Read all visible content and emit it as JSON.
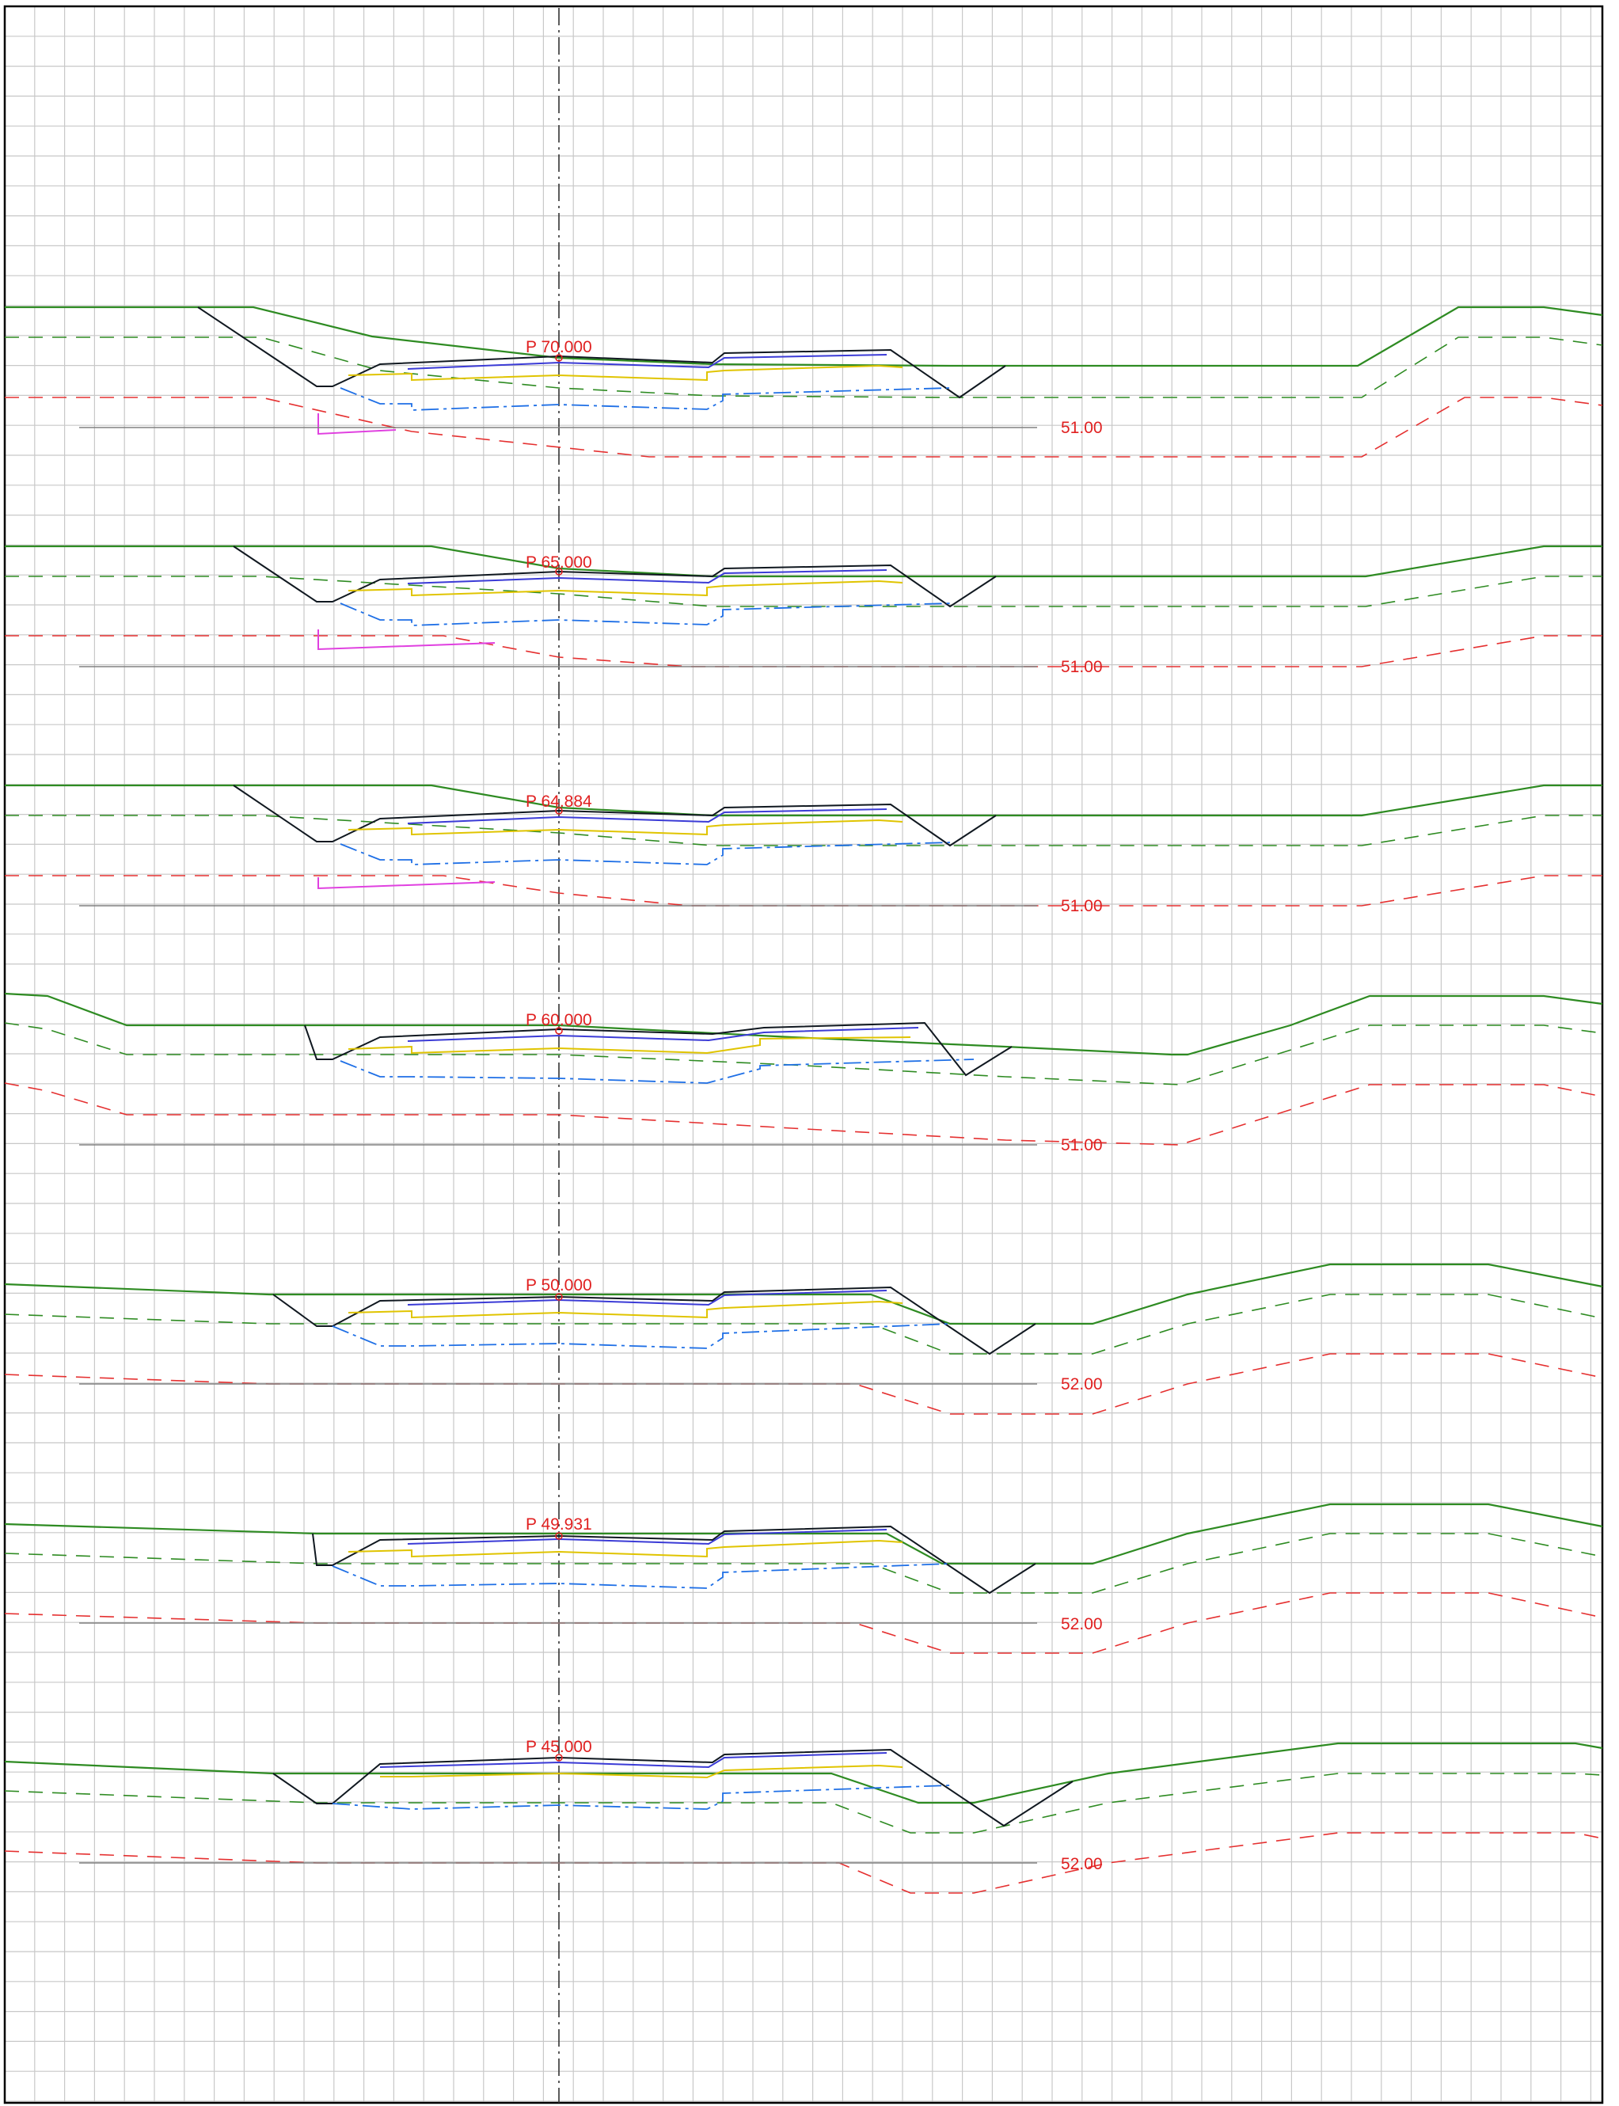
{
  "sections": [
    {
      "station": "P 70.000",
      "datum": "51.00"
    },
    {
      "station": "P 65.000",
      "datum": "51.00"
    },
    {
      "station": "P 64.884",
      "datum": "51.00"
    },
    {
      "station": "P 60.000",
      "datum": "51.00"
    },
    {
      "station": "P 50.000",
      "datum": "52.00"
    },
    {
      "station": "P 49.931",
      "datum": "52.00"
    },
    {
      "station": "P 45.000",
      "datum": "52.00"
    }
  ],
  "colors": {
    "terrain": "#2e8b22",
    "excavation": "#e53030",
    "pavement_top": "#3b3bd6",
    "pavement_base": "#e0c400",
    "subbase": "#1e6fe6",
    "outline": "#101820",
    "utility": "#e040e0"
  }
}
